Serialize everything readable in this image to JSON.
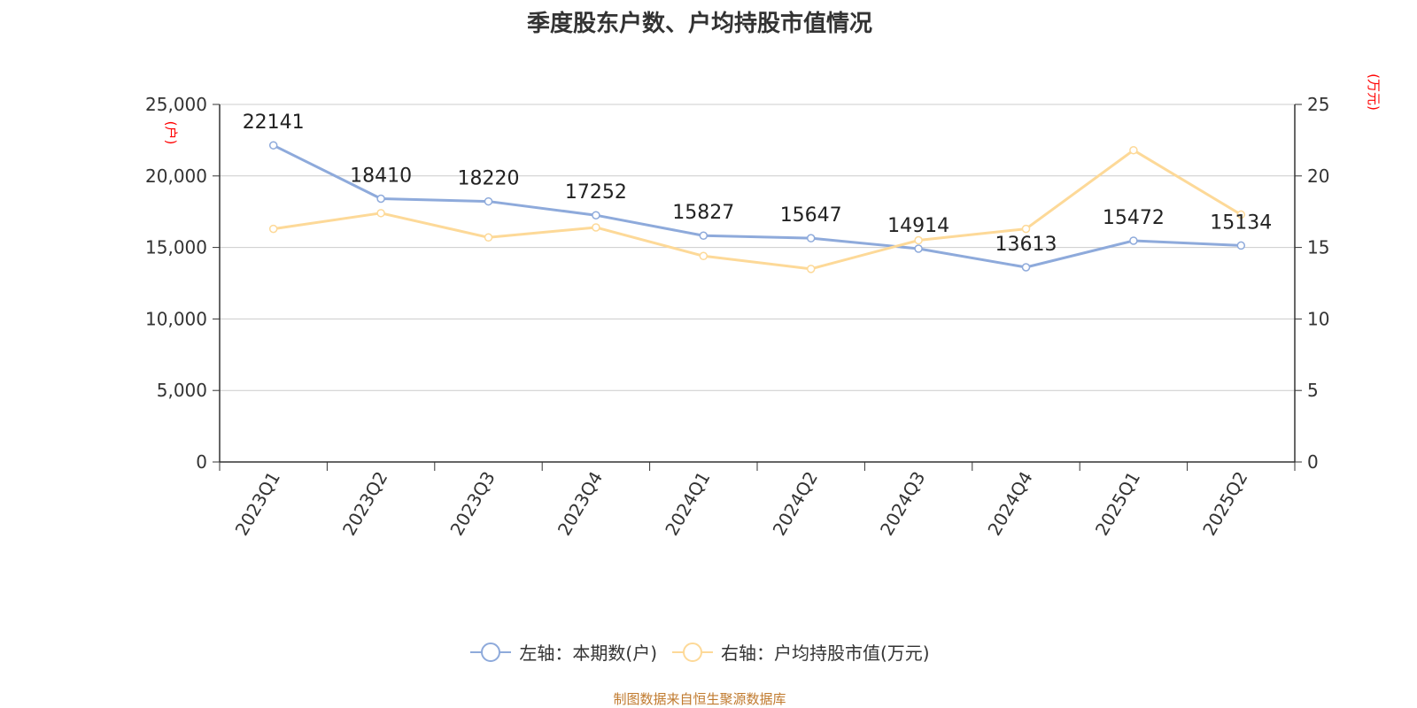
{
  "title": "季度股东户数、户均持股市值情况",
  "source": "制图数据来自恒生聚源数据库",
  "colors": {
    "series_left": "#8eaadb",
    "series_right": "#fdd998",
    "unit_label": "#ff0000",
    "source": "#c07a2e",
    "grid": "#cccccc",
    "axis": "#333333"
  },
  "chart_data": {
    "type": "line",
    "categories": [
      "2023Q1",
      "2023Q2",
      "2023Q3",
      "2023Q4",
      "2024Q1",
      "2024Q2",
      "2024Q3",
      "2024Q4",
      "2025Q1",
      "2025Q2"
    ],
    "y_left": {
      "unit": "(户)",
      "ylim": [
        0,
        25000
      ],
      "ticks": [
        0,
        5000,
        10000,
        15000,
        20000,
        25000
      ],
      "tick_labels": [
        "0",
        "5,000",
        "10,000",
        "15,000",
        "20,000",
        "25,000"
      ]
    },
    "y_right": {
      "unit": "(万元)",
      "ylim": [
        0,
        25
      ],
      "ticks": [
        0,
        5,
        10,
        15,
        20,
        25
      ],
      "tick_labels": [
        "0",
        "5",
        "10",
        "15",
        "20",
        "25"
      ]
    },
    "series": [
      {
        "name": "左轴：本期数(户)",
        "axis": "left",
        "values": [
          22141,
          18410,
          18220,
          17252,
          15827,
          15647,
          14914,
          13613,
          15472,
          15134
        ],
        "labels": [
          "22141",
          "18410",
          "18220",
          "17252",
          "15827",
          "15647",
          "14914",
          "13613",
          "15472",
          "15134"
        ]
      },
      {
        "name": "右轴：户均持股市值(万元)",
        "axis": "right",
        "values": [
          16.3,
          17.4,
          15.7,
          16.4,
          14.4,
          13.5,
          15.5,
          16.3,
          21.8,
          17.3
        ]
      }
    ],
    "grid": true,
    "legend_position": "bottom-center"
  }
}
